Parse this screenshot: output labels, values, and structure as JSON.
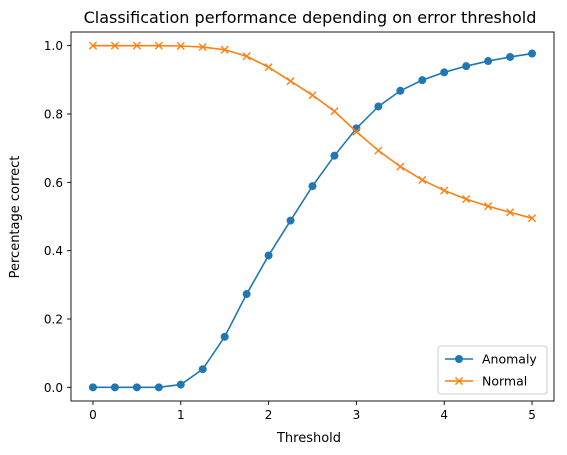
{
  "chart_data": {
    "type": "line",
    "title": "Classification performance depending on error threshold",
    "xlabel": "Threshold",
    "ylabel": "Percentage correct",
    "xlim": [
      -0.25,
      5.25
    ],
    "ylim": [
      -0.04,
      1.04
    ],
    "x_ticks": [
      0,
      1,
      2,
      3,
      4,
      5
    ],
    "y_ticks": [
      0.0,
      0.2,
      0.4,
      0.6,
      0.8,
      1.0
    ],
    "x_tick_labels": [
      "0",
      "1",
      "2",
      "3",
      "4",
      "5"
    ],
    "y_tick_labels": [
      "0.0",
      "0.2",
      "0.4",
      "0.6",
      "0.8",
      "1.0"
    ],
    "grid": false,
    "legend_position": "lower-right",
    "x": [
      0,
      0.25,
      0.5,
      0.75,
      1.0,
      1.25,
      1.5,
      1.75,
      2.0,
      2.25,
      2.5,
      2.75,
      3.0,
      3.25,
      3.5,
      3.75,
      4.0,
      4.25,
      4.5,
      4.75,
      5.0
    ],
    "series": [
      {
        "name": "Anomaly",
        "color": "#1f77b4",
        "marker": "circle",
        "values": [
          0.0,
          0.0,
          0.0,
          0.0,
          0.008,
          0.053,
          0.148,
          0.273,
          0.386,
          0.488,
          0.589,
          0.678,
          0.758,
          0.822,
          0.868,
          0.899,
          0.922,
          0.94,
          0.955,
          0.967,
          0.977
        ]
      },
      {
        "name": "Normal",
        "color": "#ff7f0e",
        "marker": "x",
        "values": [
          1.0,
          1.0,
          1.0,
          1.0,
          0.999,
          0.996,
          0.988,
          0.969,
          0.937,
          0.896,
          0.855,
          0.808,
          0.748,
          0.693,
          0.646,
          0.607,
          0.576,
          0.551,
          0.53,
          0.512,
          0.495
        ]
      }
    ]
  }
}
